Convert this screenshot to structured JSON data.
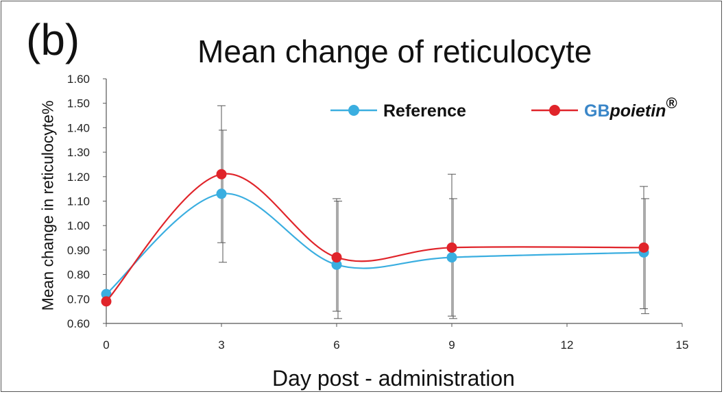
{
  "panel_label": "(b)",
  "chart_data": {
    "type": "line",
    "title": "Mean change of reticulocyte",
    "xlabel": "Day post - administration",
    "ylabel": "Mean change in reticulocyte%",
    "xlim": [
      0,
      15
    ],
    "ylim": [
      0.6,
      1.6
    ],
    "x_ticks": [
      0,
      3,
      6,
      9,
      12,
      15
    ],
    "y_ticks": [
      "0.60",
      "0.70",
      "0.80",
      "0.90",
      "1.00",
      "1.10",
      "1.20",
      "1.30",
      "1.40",
      "1.50",
      "1.60"
    ],
    "grid": false,
    "legend_position": "top-right",
    "series": [
      {
        "name": "Reference",
        "color": "#3aaee0",
        "x": [
          0,
          3,
          6,
          9,
          14
        ],
        "y": [
          0.72,
          1.13,
          0.84,
          0.87,
          0.89
        ],
        "error_low": [
          null,
          0.85,
          0.62,
          0.62,
          0.64
        ],
        "error_high": [
          null,
          1.39,
          1.1,
          1.11,
          1.11
        ]
      },
      {
        "name": "GBpoietin®",
        "name_parts": [
          "GB",
          "poietin",
          "®"
        ],
        "color": "#e0242a",
        "x": [
          0,
          3,
          6,
          9,
          14
        ],
        "y": [
          0.69,
          1.21,
          0.87,
          0.91,
          0.91
        ],
        "error_low": [
          null,
          0.93,
          0.65,
          0.63,
          0.66
        ],
        "error_high": [
          null,
          1.49,
          1.11,
          1.21,
          1.16
        ]
      }
    ]
  }
}
